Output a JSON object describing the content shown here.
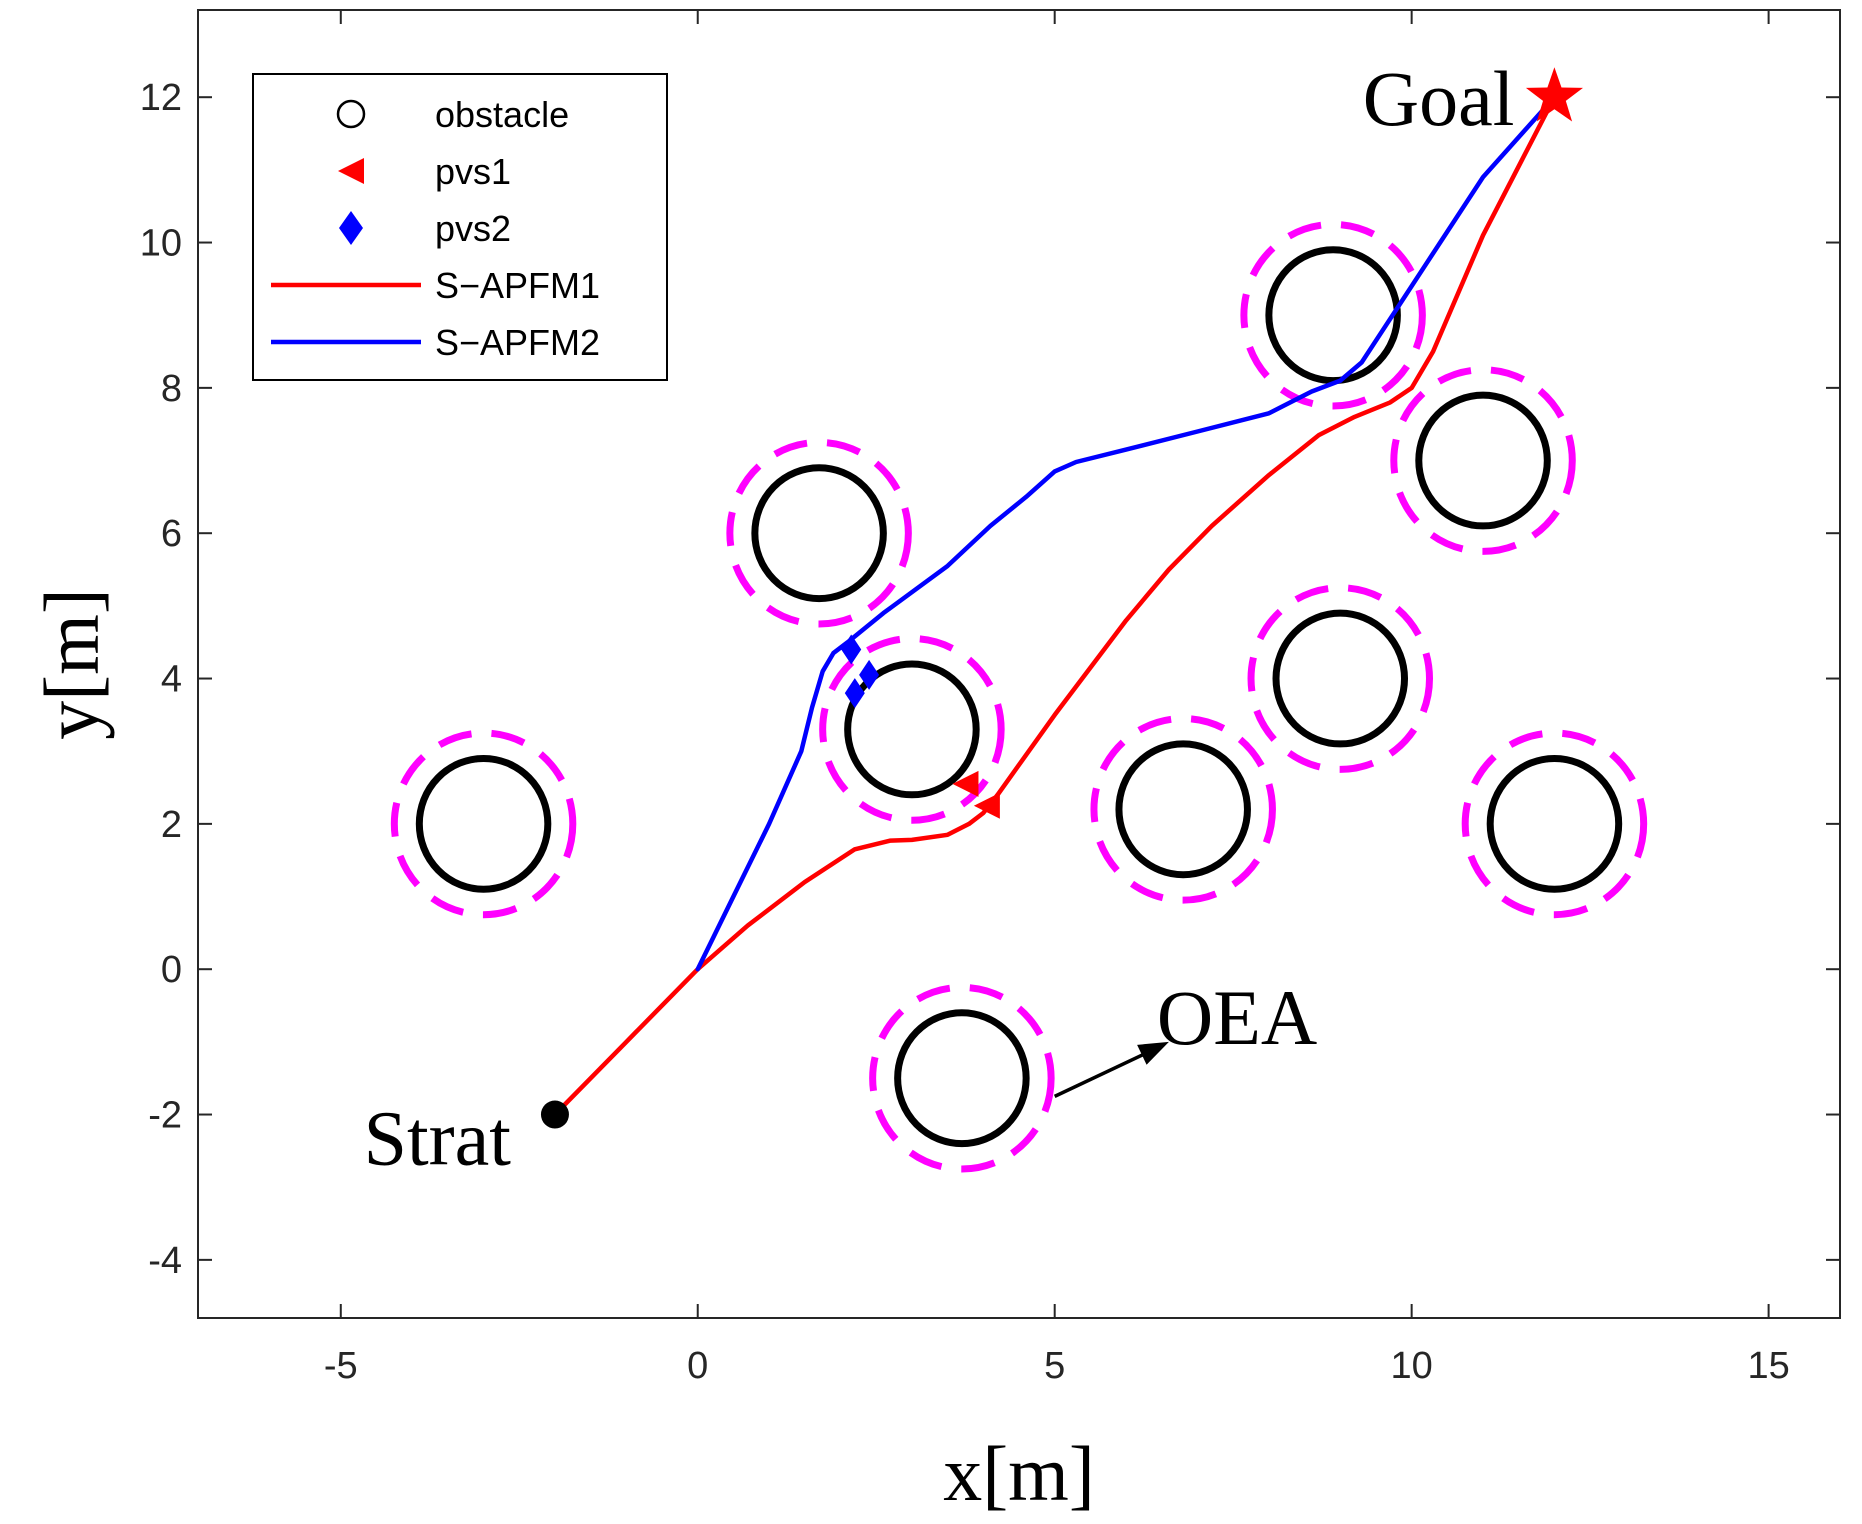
{
  "chart_data": {
    "type": "scatter",
    "xlabel": "x[m]",
    "ylabel": "y[m]",
    "xlim": [
      -7,
      16
    ],
    "ylim": [
      -4.8,
      13.2
    ],
    "xticks": [
      -5,
      0,
      5,
      10,
      15
    ],
    "yticks": [
      -4,
      -2,
      0,
      2,
      4,
      6,
      8,
      10,
      12
    ],
    "grid": false,
    "legend_position": "top-left",
    "legend": [
      {
        "key": "obstacle",
        "label": "obstacle",
        "symbol": "circle-open",
        "color": "#000000"
      },
      {
        "key": "pvs1",
        "label": "pvs1",
        "symbol": "triangle-left",
        "color": "#ff0000"
      },
      {
        "key": "pvs2",
        "label": "pvs2",
        "symbol": "diamond",
        "color": "#0000ff"
      },
      {
        "key": "sapfm1",
        "label": "S−APFM1",
        "symbol": "line",
        "color": "#ff0000"
      },
      {
        "key": "sapfm2",
        "label": "S−APFM2",
        "symbol": "line",
        "color": "#0000ff"
      }
    ],
    "obstacle_radius": 0.9,
    "oea_radius": 1.25,
    "obstacles": [
      {
        "x": -3,
        "y": 2
      },
      {
        "x": 1.7,
        "y": 6
      },
      {
        "x": 3,
        "y": 3.3
      },
      {
        "x": 3.7,
        "y": -1.5
      },
      {
        "x": 6.8,
        "y": 2.2
      },
      {
        "x": 8.9,
        "y": 9
      },
      {
        "x": 9,
        "y": 4
      },
      {
        "x": 11,
        "y": 7
      },
      {
        "x": 12,
        "y": 2
      }
    ],
    "series": [
      {
        "name": "S−APFM1",
        "color": "#ff0000",
        "x": [
          -2,
          -1,
          0,
          0.7,
          1.5,
          2.2,
          2.7,
          3.0,
          3.5,
          3.8,
          4.0,
          4.2,
          5.0,
          6.0,
          6.6,
          7.2,
          8.0,
          8.7,
          9.2,
          9.7,
          10.0,
          10.3,
          11.0,
          12.0
        ],
        "y": [
          -2,
          -1,
          0,
          0.6,
          1.2,
          1.65,
          1.77,
          1.78,
          1.85,
          2.0,
          2.15,
          2.4,
          3.5,
          4.8,
          5.5,
          6.1,
          6.8,
          7.35,
          7.6,
          7.8,
          8.0,
          8.5,
          10.1,
          12.0
        ]
      },
      {
        "name": "S−APFM2",
        "color": "#0000ff",
        "x": [
          0,
          0.5,
          1.0,
          1.45,
          1.6,
          1.75,
          1.9,
          2.1,
          2.6,
          3.5,
          4.1,
          4.6,
          5.0,
          5.3,
          6.0,
          7.0,
          8.0,
          8.3,
          8.6,
          9.0,
          9.3,
          9.6,
          10.2,
          11.0,
          12.0
        ],
        "y": [
          0,
          1.0,
          2.0,
          3.0,
          3.6,
          4.1,
          4.35,
          4.5,
          4.9,
          5.55,
          6.1,
          6.5,
          6.85,
          6.98,
          7.15,
          7.4,
          7.65,
          7.8,
          7.95,
          8.1,
          8.35,
          8.8,
          9.7,
          10.9,
          12.0
        ]
      }
    ],
    "pvs1_markers": [
      {
        "x": 3.75,
        "y": 2.55
      },
      {
        "x": 4.05,
        "y": 2.25
      }
    ],
    "pvs2_markers": [
      {
        "x": 2.15,
        "y": 4.4
      },
      {
        "x": 2.4,
        "y": 4.05
      },
      {
        "x": 2.2,
        "y": 3.8
      }
    ],
    "start": {
      "label": "Strat",
      "x": -2,
      "y": -2
    },
    "goal": {
      "label": "Goal",
      "x": 12,
      "y": 12
    },
    "oea_annotation": {
      "label": "OEA",
      "from": {
        "x": 5.0,
        "y": -1.75
      },
      "to": {
        "x": 6.6,
        "y": -1.0
      }
    },
    "colors": {
      "axis": "#262626",
      "oea": "#ff00ff",
      "obstacle": "#000000"
    }
  }
}
